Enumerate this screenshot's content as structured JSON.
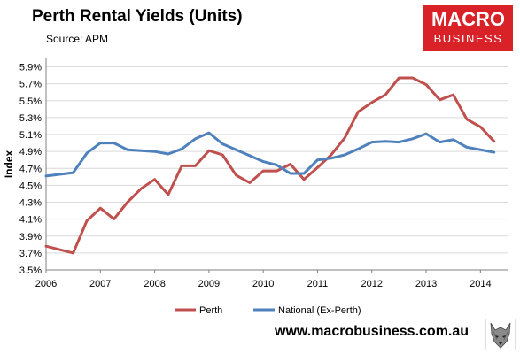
{
  "header": {
    "title": "Perth Rental Yields (Units)",
    "source": "Source: APM"
  },
  "logo": {
    "line1": "MACRO",
    "line2": "BUSINESS"
  },
  "footer": {
    "url": "www.macrobusiness.com.au"
  },
  "colors": {
    "perth": "#c0504d",
    "national": "#4f81bd",
    "logo_bg": "#d92128"
  },
  "chart_data": {
    "type": "line",
    "title": "Perth Rental Yields (Units)",
    "subtitle": "Source: APM",
    "ylabel": "Index",
    "xlabel": "",
    "xlim": [
      2006.0,
      2014.5
    ],
    "ylim": [
      3.5,
      6.0
    ],
    "grid": "horizontal",
    "legend_position": "bottom",
    "x_ticks": [
      2006,
      2007,
      2008,
      2009,
      2010,
      2011,
      2012,
      2013,
      2014
    ],
    "x_tick_labels": [
      "2006",
      "2007",
      "2008",
      "2009",
      "2010",
      "2011",
      "2012",
      "2013",
      "2014"
    ],
    "y_ticks": [
      3.5,
      3.7,
      3.9,
      4.1,
      4.3,
      4.5,
      4.7,
      4.9,
      5.1,
      5.3,
      5.5,
      5.7,
      5.9
    ],
    "y_tick_labels": [
      "3.5%",
      "3.7%",
      "3.9%",
      "4.1%",
      "4.3%",
      "4.5%",
      "4.7%",
      "4.9%",
      "5.1%",
      "5.3%",
      "5.5%",
      "5.7%",
      "5.9%"
    ],
    "series": [
      {
        "name": "Perth",
        "color": "#c0504d",
        "x": [
          2006.0,
          2006.5,
          2006.75,
          2007.0,
          2007.25,
          2007.5,
          2007.75,
          2008.0,
          2008.25,
          2008.5,
          2008.75,
          2009.0,
          2009.25,
          2009.5,
          2009.75,
          2010.0,
          2010.25,
          2010.5,
          2010.75,
          2011.0,
          2011.25,
          2011.5,
          2011.75,
          2012.0,
          2012.25,
          2012.5,
          2012.75,
          2013.0,
          2013.25,
          2013.5,
          2013.75,
          2014.0,
          2014.25
        ],
        "values": [
          3.78,
          3.7,
          4.08,
          4.23,
          4.1,
          4.3,
          4.46,
          4.57,
          4.39,
          4.73,
          4.73,
          4.91,
          4.86,
          4.62,
          4.53,
          4.67,
          4.67,
          4.75,
          4.57,
          4.71,
          4.86,
          5.06,
          5.37,
          5.48,
          5.57,
          5.77,
          5.77,
          5.69,
          5.51,
          5.57,
          5.28,
          5.19,
          5.02
        ]
      },
      {
        "name": "National (Ex-Perth)",
        "color": "#4f81bd",
        "x": [
          2006.0,
          2006.5,
          2006.75,
          2007.0,
          2007.25,
          2007.5,
          2007.75,
          2008.0,
          2008.25,
          2008.5,
          2008.75,
          2009.0,
          2009.25,
          2009.5,
          2009.75,
          2010.0,
          2010.25,
          2010.5,
          2010.75,
          2011.0,
          2011.25,
          2011.5,
          2011.75,
          2012.0,
          2012.25,
          2012.5,
          2012.75,
          2013.0,
          2013.25,
          2013.5,
          2013.75,
          2014.0,
          2014.25
        ],
        "values": [
          4.61,
          4.65,
          4.88,
          5.0,
          5.0,
          4.92,
          4.91,
          4.9,
          4.87,
          4.93,
          5.05,
          5.12,
          4.99,
          4.92,
          4.85,
          4.78,
          4.74,
          4.64,
          4.64,
          4.8,
          4.82,
          4.86,
          4.93,
          5.01,
          5.02,
          5.01,
          5.05,
          5.11,
          5.01,
          5.04,
          4.95,
          4.92,
          4.89
        ]
      }
    ]
  }
}
